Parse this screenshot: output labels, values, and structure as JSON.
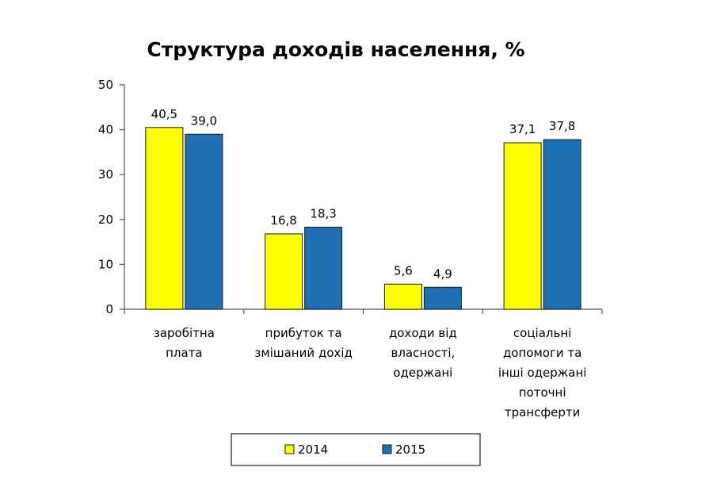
{
  "chart_data": {
    "type": "bar",
    "title": "Структура доходів населення, %",
    "xlabel": "",
    "ylabel": "",
    "ylim": [
      0,
      50
    ],
    "yticks": [
      0,
      10,
      20,
      30,
      40,
      50
    ],
    "grid": false,
    "legend_position": "bottom",
    "categories": [
      [
        "заробітна",
        "плата"
      ],
      [
        "прибуток та",
        "змішаний дохід"
      ],
      [
        "доходи від",
        "власності,",
        "одержані"
      ],
      [
        "соціальні",
        "допомоги та",
        "інші одержані",
        "поточні",
        "трансферти"
      ]
    ],
    "series": [
      {
        "name": "2014",
        "color": "#ffff00",
        "values": [
          40.5,
          16.8,
          5.6,
          37.1
        ],
        "labels": [
          "40,5",
          "16,8",
          "5,6",
          "37,1"
        ]
      },
      {
        "name": "2015",
        "color": "#1f6fb5",
        "values": [
          39.0,
          18.3,
          4.9,
          37.8
        ],
        "labels": [
          "39,0",
          "18,3",
          "4,9",
          "37,8"
        ]
      }
    ]
  }
}
